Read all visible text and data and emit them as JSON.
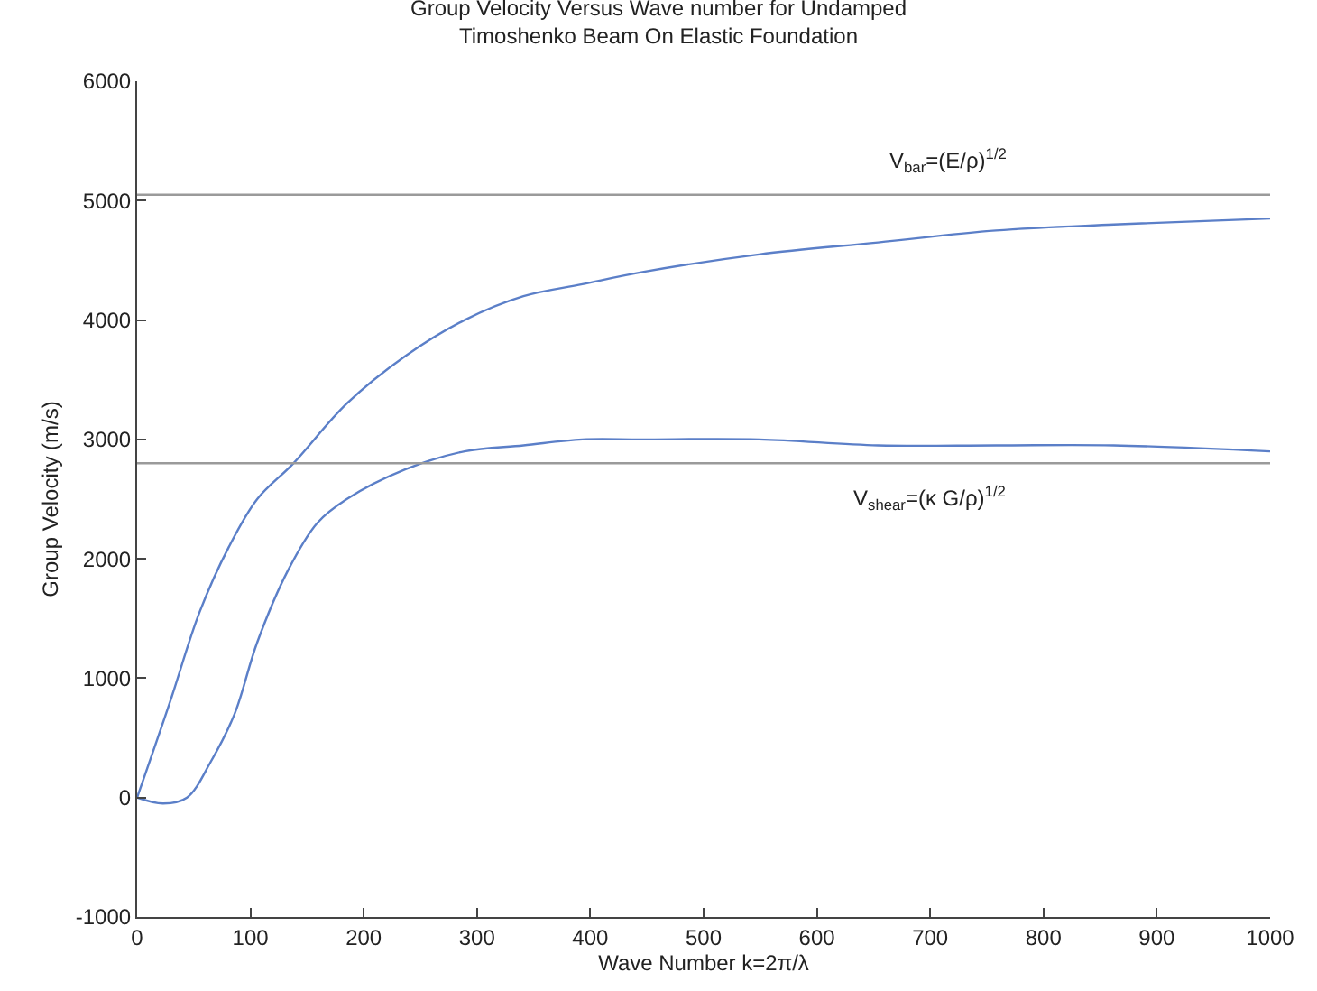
{
  "chart_data": {
    "type": "line",
    "title": "Group Velocity Versus Wave number for Undamped\nTimoshenko Beam On Elastic Foundation",
    "xlabel": "Wave Number k=2π/λ",
    "ylabel": "Group Velocity (m/s)",
    "series": [
      {
        "color": "#5b7fc8",
        "x": [
          0,
          29,
          55,
          81,
          106,
          138,
          185,
          237,
          289,
          341,
          393,
          445,
          549,
          654,
          758,
          862,
          1000
        ],
        "values": [
          0,
          800,
          1550,
          2100,
          2500,
          2800,
          3300,
          3700,
          4000,
          4200,
          4300,
          4400,
          4550,
          4650,
          4750,
          4800,
          4850
        ]
      },
      {
        "color": "#5b7fc8",
        "x": [
          0,
          23,
          44,
          65,
          86,
          106,
          133,
          159,
          185,
          237,
          289,
          341,
          393,
          445,
          549,
          654,
          758,
          862,
          1000
        ],
        "values": [
          0,
          -50,
          0,
          300,
          700,
          1300,
          1900,
          2300,
          2500,
          2750,
          2900,
          2950,
          3000,
          3000,
          3000,
          2950,
          2950,
          2950,
          2900
        ]
      }
    ],
    "ref_lines": [
      {
        "axis": "y",
        "value": 5050,
        "label": "V$_{bar}$=(E/ρ)$^{1/2}$",
        "color": "#9a9a9a"
      },
      {
        "axis": "y",
        "value": 2800,
        "label": "V$_{shear}$=(κ G/ρ)$^{1/2}$",
        "color": "#9a9a9a"
      }
    ],
    "xlim": [
      0,
      1000
    ],
    "xticks": [
      0,
      100,
      200,
      300,
      400,
      500,
      600,
      700,
      800,
      900,
      1000
    ],
    "ylim": [
      -1000,
      6000
    ],
    "yticks": [
      -1000,
      0,
      1000,
      2000,
      3000,
      4000,
      5000,
      6000
    ],
    "grid": false,
    "marker": "none",
    "line_style": "solid"
  }
}
